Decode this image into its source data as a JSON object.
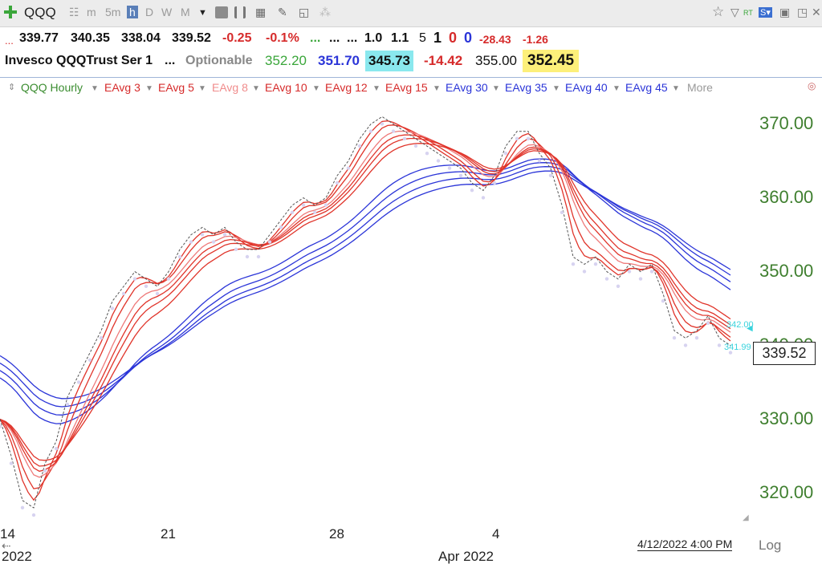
{
  "toolbar": {
    "symbol": "QQQ",
    "timeframes": [
      "m",
      "5m",
      "h",
      "D",
      "W",
      "M"
    ],
    "active_timeframe": "h"
  },
  "quote_row1": {
    "open": "339.77",
    "high": "340.35",
    "low": "338.04",
    "close": "339.52",
    "change": "-0.25",
    "change_pct": "-0.1%",
    "v1": "1.0",
    "v2": "1.1",
    "v3": "5",
    "v4": "1",
    "v5": "0",
    "v6": "0",
    "v7": "-28.43",
    "v8": "-1.26"
  },
  "quote_row2": {
    "name": "Invesco QQQTrust Ser 1",
    "optionable": "Optionable",
    "p1": "352.20",
    "p2": "351.70",
    "p3": "345.73",
    "p4": "-14.42",
    "p5": "355.00",
    "p6": "352.45"
  },
  "legend": {
    "chart_name": "QQQ Hourly",
    "averages": [
      "EAvg 3",
      "EAvg 5",
      "EAvg 8",
      "EAvg 10",
      "EAvg 12",
      "EAvg 15",
      "EAvg 30",
      "EAvg 35",
      "EAvg 40",
      "EAvg 45"
    ],
    "more": "More"
  },
  "colors": {
    "short_ema": "#e0342a",
    "long_ema": "#2b35d8",
    "price": "#555555",
    "axis_text": "#3f7f2f"
  },
  "price_label": "339.52",
  "side_labels": [
    "342.00",
    "341.99"
  ],
  "date_stamp": "4/12/2022 4:00 PM",
  "scale_mode": "Log",
  "chart_data": {
    "type": "line",
    "title": "QQQ Hourly",
    "ylim": [
      318,
      373
    ],
    "yticks": [
      320,
      330,
      340,
      350,
      360,
      370
    ],
    "ytick_labels": [
      "320.00",
      "330.00",
      "340.00",
      "350.00",
      "360.00",
      "370.00"
    ],
    "x_tick_labels": [
      "14",
      "21",
      "28",
      "4"
    ],
    "x_sublabels": [
      "2022",
      "Apr 2022"
    ],
    "x_bar_range": [
      0,
      130
    ],
    "x_ticks_at_bar": [
      0,
      30,
      60,
      89
    ],
    "price_points": [
      [
        0,
        330
      ],
      [
        2,
        325
      ],
      [
        4,
        319
      ],
      [
        6,
        318
      ],
      [
        8,
        324
      ],
      [
        10,
        327
      ],
      [
        12,
        333
      ],
      [
        14,
        336
      ],
      [
        16,
        339
      ],
      [
        18,
        342
      ],
      [
        20,
        346
      ],
      [
        22,
        348
      ],
      [
        24,
        350
      ],
      [
        26,
        349
      ],
      [
        28,
        348
      ],
      [
        30,
        350
      ],
      [
        32,
        353
      ],
      [
        34,
        355
      ],
      [
        36,
        356
      ],
      [
        38,
        355
      ],
      [
        40,
        356
      ],
      [
        42,
        354
      ],
      [
        44,
        353
      ],
      [
        46,
        353
      ],
      [
        48,
        355
      ],
      [
        50,
        357
      ],
      [
        52,
        359
      ],
      [
        54,
        360
      ],
      [
        56,
        359
      ],
      [
        58,
        360
      ],
      [
        60,
        363
      ],
      [
        62,
        365
      ],
      [
        64,
        368
      ],
      [
        66,
        370
      ],
      [
        68,
        371
      ],
      [
        70,
        370
      ],
      [
        72,
        369
      ],
      [
        74,
        368
      ],
      [
        76,
        367
      ],
      [
        78,
        366
      ],
      [
        80,
        365
      ],
      [
        82,
        364
      ],
      [
        84,
        362
      ],
      [
        86,
        361
      ],
      [
        88,
        363
      ],
      [
        90,
        367
      ],
      [
        92,
        369
      ],
      [
        94,
        369
      ],
      [
        96,
        366
      ],
      [
        98,
        364
      ],
      [
        100,
        359
      ],
      [
        102,
        352
      ],
      [
        104,
        351
      ],
      [
        106,
        352
      ],
      [
        108,
        350
      ],
      [
        110,
        349
      ],
      [
        112,
        351
      ],
      [
        114,
        350
      ],
      [
        116,
        351
      ],
      [
        118,
        347
      ],
      [
        120,
        342
      ],
      [
        122,
        341
      ],
      [
        124,
        342
      ],
      [
        126,
        344
      ],
      [
        128,
        341
      ],
      [
        130,
        340
      ]
    ],
    "series": [
      {
        "name": "EAvg 3",
        "span": 3
      },
      {
        "name": "EAvg 5",
        "span": 5
      },
      {
        "name": "EAvg 8",
        "span": 8
      },
      {
        "name": "EAvg 10",
        "span": 10
      },
      {
        "name": "EAvg 12",
        "span": 12
      },
      {
        "name": "EAvg 15",
        "span": 15
      },
      {
        "name": "EAvg 30",
        "span": 30
      },
      {
        "name": "EAvg 35",
        "span": 35
      },
      {
        "name": "EAvg 40",
        "span": 40
      },
      {
        "name": "EAvg 45",
        "span": 45
      }
    ],
    "grid": false,
    "legend_position": "top-left"
  }
}
